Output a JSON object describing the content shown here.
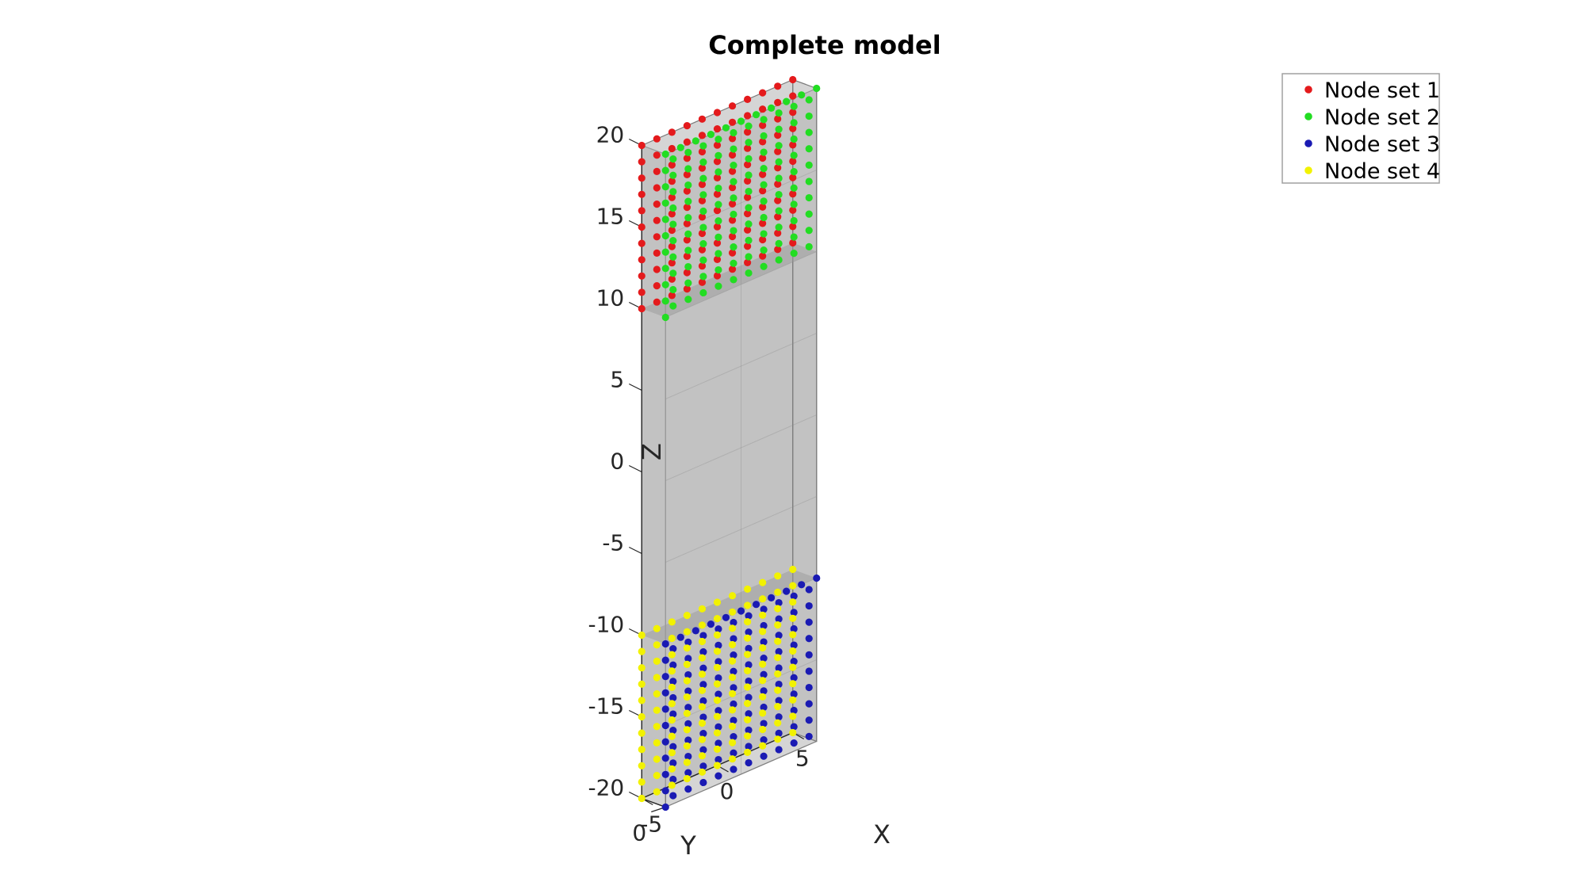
{
  "chart_data": {
    "type": "scatter",
    "title": "Complete model",
    "xlabel": "X",
    "ylabel": "Y",
    "zlabel": "Z",
    "view": "3d",
    "xlim": [
      -5,
      5
    ],
    "ylim": [
      -1,
      0
    ],
    "zlim": [
      -20,
      20
    ],
    "xticks": [
      "-5",
      "0",
      "5"
    ],
    "yticks": [
      "0"
    ],
    "zticks": [
      "20",
      "15",
      "10",
      "5",
      "0",
      "-5",
      "-10",
      "-15",
      "-20"
    ],
    "legend_position": "top-right",
    "box": {
      "x": [
        -5,
        5
      ],
      "y": [
        -1,
        0
      ],
      "z": [
        -20,
        20
      ],
      "color": "#b3b3b3",
      "alpha": 0.6
    },
    "series": [
      {
        "name": "Node set 1",
        "color": "#e41a1c",
        "face": "y=-1",
        "x_range": [
          -5,
          5
        ],
        "z_range": [
          10,
          20
        ],
        "nx": 11,
        "nz": 11
      },
      {
        "name": "Node set 2",
        "color": "#22dd22",
        "face": "x=-5",
        "y_range": [
          -1,
          0
        ],
        "z_range": [
          10,
          20
        ],
        "ny": 2,
        "nz": 11,
        "extra_face": "y=0"
      },
      {
        "name": "Node set 3",
        "color": "#1a1ab3",
        "face": "x=-5",
        "y_range": [
          -1,
          0
        ],
        "z_range": [
          -20,
          -10
        ],
        "ny": 2,
        "nz": 11,
        "extra_face": "y=0"
      },
      {
        "name": "Node set 4",
        "color": "#f2f200",
        "face": "y=-1",
        "x_range": [
          -5,
          5
        ],
        "z_range": [
          -20,
          -10
        ],
        "nx": 11,
        "nz": 11
      }
    ]
  }
}
